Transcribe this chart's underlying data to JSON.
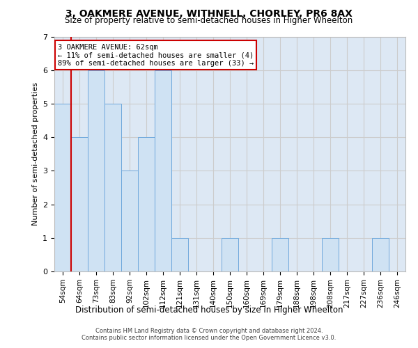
{
  "title": "3, OAKMERE AVENUE, WITHNELL, CHORLEY, PR6 8AX",
  "subtitle": "Size of property relative to semi-detached houses in Higher Wheelton",
  "xlabel": "Distribution of semi-detached houses by size in Higher Wheelton",
  "ylabel": "Number of semi-detached properties",
  "categories": [
    "54sqm",
    "64sqm",
    "73sqm",
    "83sqm",
    "92sqm",
    "102sqm",
    "112sqm",
    "121sqm",
    "131sqm",
    "140sqm",
    "150sqm",
    "160sqm",
    "169sqm",
    "179sqm",
    "188sqm",
    "198sqm",
    "208sqm",
    "217sqm",
    "227sqm",
    "236sqm",
    "246sqm"
  ],
  "values": [
    5,
    4,
    6,
    5,
    3,
    4,
    6,
    1,
    0,
    0,
    1,
    0,
    0,
    1,
    0,
    0,
    1,
    0,
    0,
    1,
    0
  ],
  "bar_color": "#cfe2f3",
  "bar_edge_color": "#6fa8dc",
  "red_line_index": 1,
  "annotation_text": "3 OAKMERE AVENUE: 62sqm\n← 11% of semi-detached houses are smaller (4)\n89% of semi-detached houses are larger (33) →",
  "ylim": [
    0,
    7
  ],
  "yticks": [
    0,
    1,
    2,
    3,
    4,
    5,
    6,
    7
  ],
  "footer_line1": "Contains HM Land Registry data © Crown copyright and database right 2024.",
  "footer_line2": "Contains public sector information licensed under the Open Government Licence v3.0.",
  "bg_color": "#ffffff",
  "grid_color": "#cccccc",
  "title_fontsize": 10,
  "subtitle_fontsize": 8.5,
  "annotation_box_color": "#ffffff",
  "annotation_box_edge": "#cc0000",
  "ax_facecolor": "#dde8f4"
}
